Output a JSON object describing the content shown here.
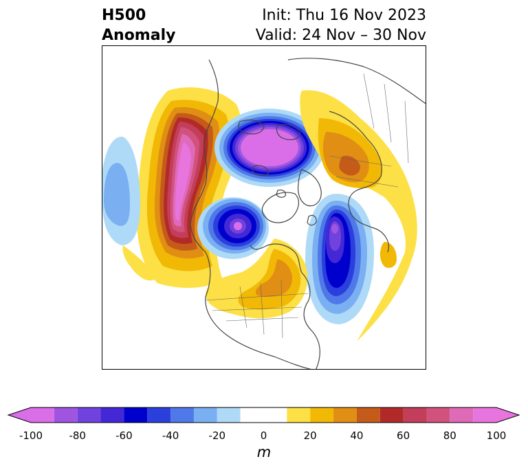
{
  "title": {
    "left_line1": "H500",
    "left_line2": "Anomaly",
    "right_line1": "Init: Thu 16 Nov 2023",
    "right_line2": "Valid: 24 Nov – 30 Nov"
  },
  "colorbar": {
    "unit": "m",
    "ticks": [
      "-100",
      "-80",
      "-60",
      "-40",
      "-20",
      "0",
      "20",
      "40",
      "60",
      "80",
      "100"
    ],
    "levels": [
      -100,
      -90,
      -80,
      -70,
      -60,
      -50,
      -40,
      -30,
      -20,
      -10,
      10,
      20,
      30,
      40,
      50,
      60,
      70,
      80,
      90,
      100
    ],
    "colors": [
      "#da6de8",
      "#9f55e0",
      "#7042de",
      "#4428d6",
      "#0000cd",
      "#2a3fdc",
      "#4f78e8",
      "#7ab0f2",
      "#aedaf8",
      "#ffffff",
      "#fde045",
      "#f2b806",
      "#e08e14",
      "#c45b19",
      "#b22a28",
      "#c23e5a",
      "#d2527e",
      "#df6ab8",
      "#e874de"
    ],
    "extend_low_color": "#da6de8",
    "extend_high_color": "#e874de"
  }
}
